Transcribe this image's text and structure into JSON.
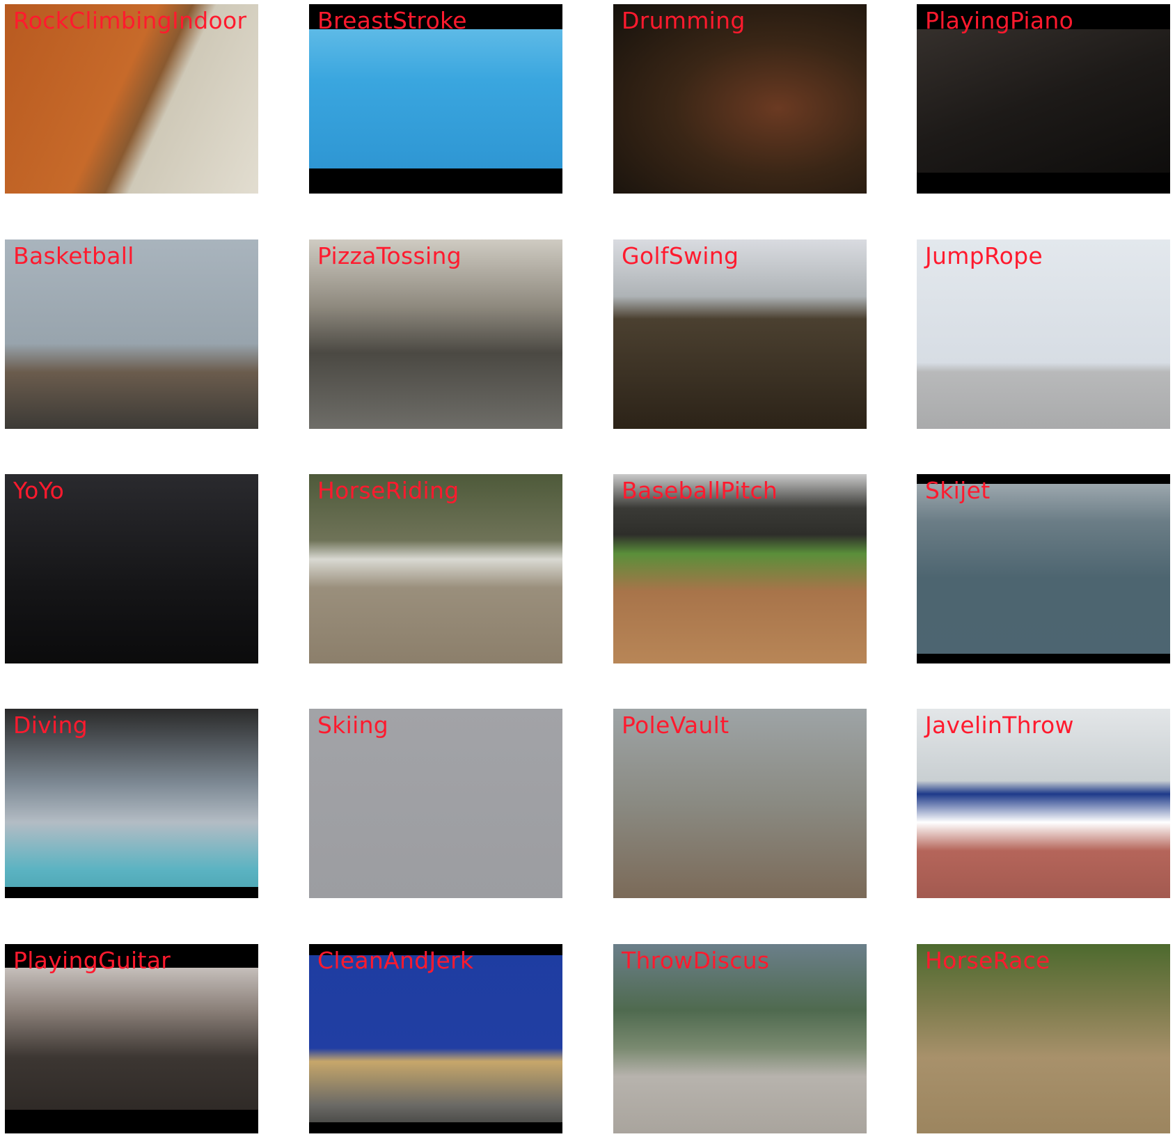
{
  "tiles": [
    {
      "label": "RockClimbingIndoor"
    },
    {
      "label": "BreastStroke"
    },
    {
      "label": "Drumming"
    },
    {
      "label": "PlayingPiano"
    },
    {
      "label": "Basketball"
    },
    {
      "label": "PizzaTossing"
    },
    {
      "label": "GolfSwing"
    },
    {
      "label": "JumpRope"
    },
    {
      "label": "YoYo"
    },
    {
      "label": "HorseRiding"
    },
    {
      "label": "BaseballPitch"
    },
    {
      "label": "Skijet"
    },
    {
      "label": "Diving"
    },
    {
      "label": "Skiing"
    },
    {
      "label": "PoleVault"
    },
    {
      "label": "JavelinThrow"
    },
    {
      "label": "PlayingGuitar"
    },
    {
      "label": "CleanAndJerk"
    },
    {
      "label": "ThrowDiscus"
    },
    {
      "label": "HorseRace"
    }
  ],
  "label_color": "#ff1a2e"
}
